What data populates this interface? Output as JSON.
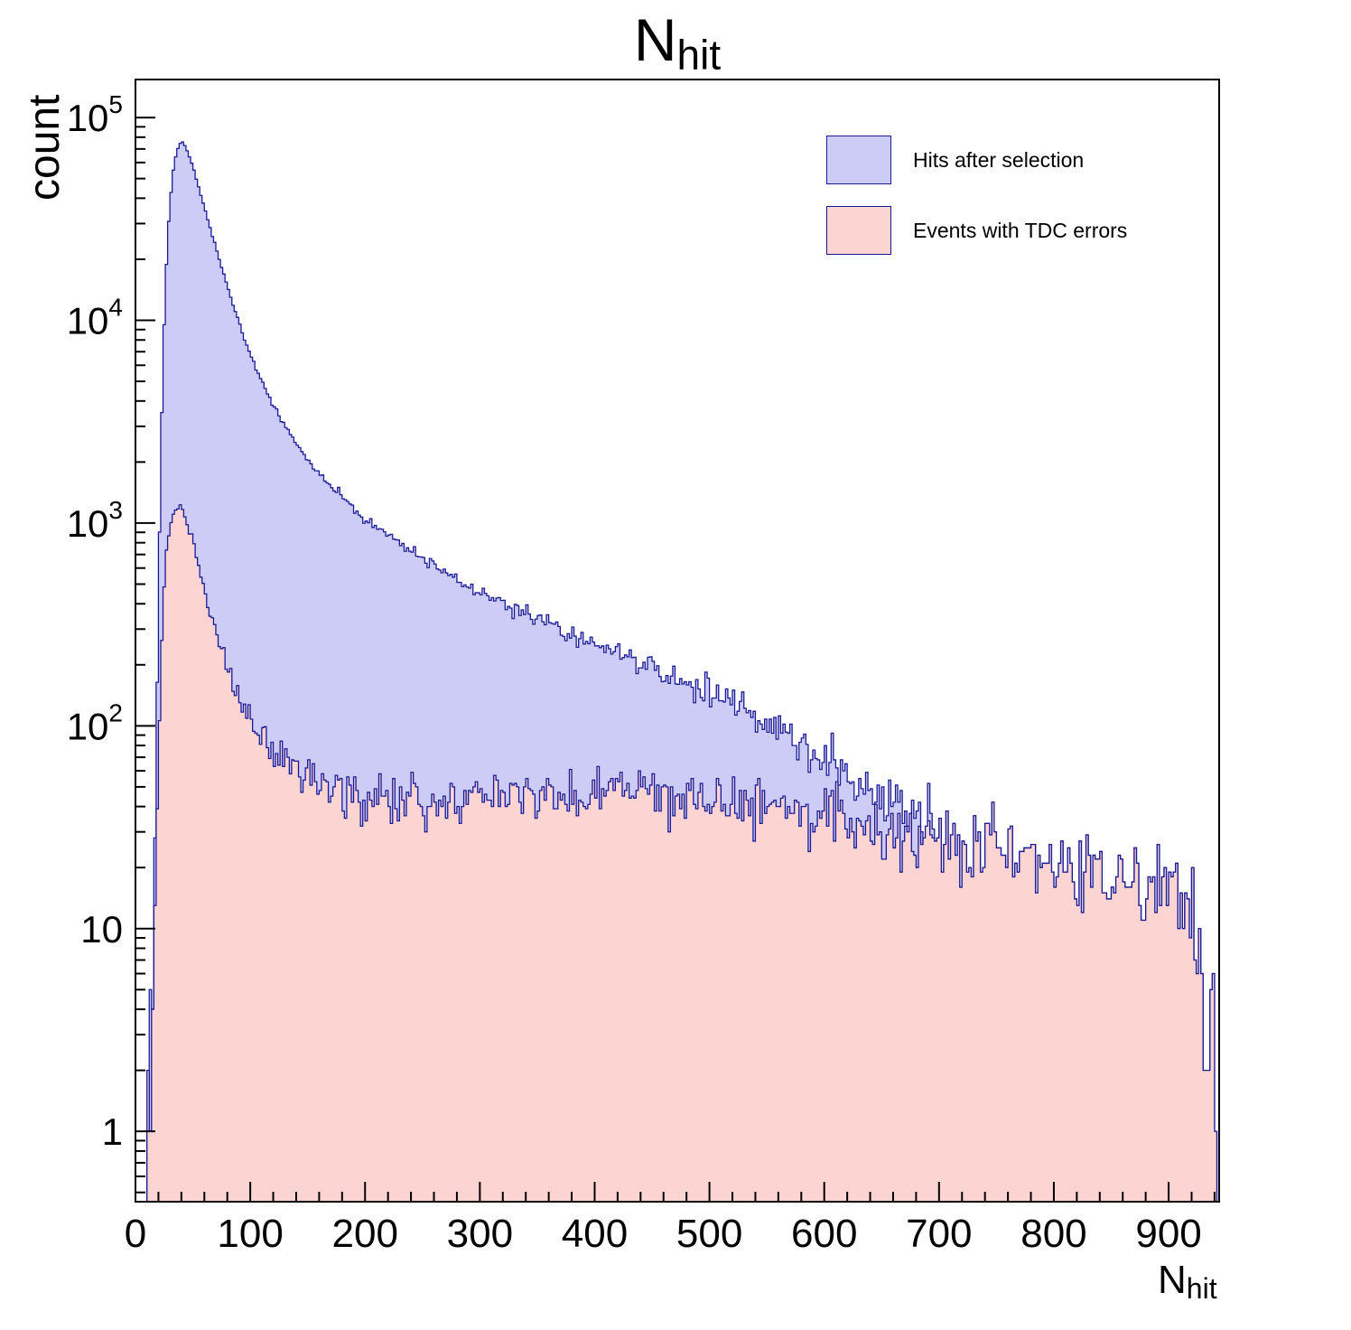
{
  "title": {
    "text": "N",
    "sub": "hit"
  },
  "y_axis_title": "count",
  "x_axis_title": {
    "text": "N",
    "sub": "hit"
  },
  "chart_data": {
    "type": "histogram-step-filled",
    "y_scale": "log",
    "x_range": [
      0,
      944
    ],
    "y_range": [
      0.45,
      154000
    ],
    "bin_width": 2,
    "grid": false,
    "legend_position": "top-right",
    "x_ticks": [
      0,
      100,
      200,
      300,
      400,
      500,
      600,
      700,
      800,
      900
    ],
    "x_minor_step": 20,
    "y_ticks": [
      {
        "v": 1,
        "base": "1",
        "exp": ""
      },
      {
        "v": 10,
        "base": "10",
        "exp": ""
      },
      {
        "v": 100,
        "base": "10",
        "exp": "2"
      },
      {
        "v": 1000,
        "base": "10",
        "exp": "3"
      },
      {
        "v": 10000,
        "base": "10",
        "exp": "4"
      },
      {
        "v": 100000,
        "base": "10",
        "exp": "5"
      }
    ],
    "series": [
      {
        "name": "Hits after selection",
        "fill": "#ccccf6",
        "line": "#1a1a96",
        "seed": 4242,
        "peak": {
          "x": 40,
          "y": 75000
        },
        "anchors": [
          [
            4,
            0.3
          ],
          [
            8,
            0.8
          ],
          [
            12,
            1.2
          ],
          [
            15,
            4
          ],
          [
            17,
            25
          ],
          [
            19,
            150
          ],
          [
            21,
            900
          ],
          [
            23,
            3500
          ],
          [
            25,
            9500
          ],
          [
            27,
            19000
          ],
          [
            29,
            31000
          ],
          [
            31,
            43000
          ],
          [
            33,
            55000
          ],
          [
            35,
            64000
          ],
          [
            37,
            70500
          ],
          [
            39,
            74000
          ],
          [
            41,
            75000
          ],
          [
            43,
            73000
          ],
          [
            45,
            69000
          ],
          [
            48,
            62000
          ],
          [
            51,
            54500
          ],
          [
            54,
            47500
          ],
          [
            57,
            41500
          ],
          [
            60,
            36000
          ],
          [
            64,
            30000
          ],
          [
            68,
            25000
          ],
          [
            72,
            21000
          ],
          [
            76,
            17600
          ],
          [
            80,
            14800
          ],
          [
            85,
            12000
          ],
          [
            90,
            9800
          ],
          [
            95,
            8100
          ],
          [
            100,
            6800
          ],
          [
            105,
            5800
          ],
          [
            110,
            5000
          ],
          [
            115,
            4350
          ],
          [
            120,
            3800
          ],
          [
            125,
            3400
          ],
          [
            130,
            3000
          ],
          [
            135,
            2700
          ],
          [
            140,
            2450
          ],
          [
            145,
            2250
          ],
          [
            150,
            2050
          ],
          [
            160,
            1750
          ],
          [
            170,
            1520
          ],
          [
            180,
            1340
          ],
          [
            190,
            1190
          ],
          [
            200,
            1060
          ],
          [
            210,
            960
          ],
          [
            220,
            875
          ],
          [
            230,
            800
          ],
          [
            240,
            735
          ],
          [
            250,
            675
          ],
          [
            260,
            625
          ],
          [
            270,
            578
          ],
          [
            280,
            535
          ],
          [
            290,
            497
          ],
          [
            300,
            462
          ],
          [
            310,
            430
          ],
          [
            320,
            402
          ],
          [
            330,
            376
          ],
          [
            340,
            353
          ],
          [
            350,
            332
          ],
          [
            360,
            313
          ],
          [
            370,
            296
          ],
          [
            380,
            280
          ],
          [
            390,
            265
          ],
          [
            400,
            251
          ],
          [
            410,
            239
          ],
          [
            420,
            227
          ],
          [
            430,
            216
          ],
          [
            440,
            205
          ],
          [
            450,
            195
          ],
          [
            460,
            185
          ],
          [
            470,
            175
          ],
          [
            480,
            166
          ],
          [
            490,
            157
          ],
          [
            500,
            148
          ],
          [
            510,
            139
          ],
          [
            520,
            130
          ],
          [
            530,
            121
          ],
          [
            540,
            112
          ],
          [
            550,
            104
          ],
          [
            560,
            96
          ],
          [
            570,
            88
          ],
          [
            580,
            81
          ],
          [
            590,
            74
          ],
          [
            600,
            68
          ],
          [
            610,
            62
          ],
          [
            620,
            57
          ],
          [
            630,
            52
          ],
          [
            640,
            48
          ],
          [
            650,
            44
          ],
          [
            660,
            40
          ],
          [
            670,
            37
          ],
          [
            680,
            34
          ],
          [
            690,
            31
          ],
          [
            700,
            29
          ],
          [
            720,
            26
          ],
          [
            740,
            25
          ],
          [
            760,
            24
          ],
          [
            780,
            23
          ],
          [
            800,
            22
          ],
          [
            820,
            21
          ],
          [
            840,
            20
          ],
          [
            860,
            19
          ],
          [
            880,
            17
          ],
          [
            900,
            15
          ],
          [
            910,
            13
          ],
          [
            918,
            11
          ],
          [
            924,
            8
          ],
          [
            930,
            5
          ],
          [
            934,
            3
          ],
          [
            938,
            1.5
          ],
          [
            941,
            0.7
          ],
          [
            944,
            0.3
          ]
        ]
      },
      {
        "name": "Events with TDC errors",
        "fill": "#fcd4d2",
        "line": "#1a1a96",
        "seed": 1337,
        "peak": {
          "x": 38,
          "y": 1220
        },
        "anchors": [
          [
            4,
            0.2
          ],
          [
            8,
            0.5
          ],
          [
            12,
            1
          ],
          [
            14,
            2
          ],
          [
            16,
            5
          ],
          [
            18,
            16
          ],
          [
            20,
            60
          ],
          [
            22,
            180
          ],
          [
            24,
            400
          ],
          [
            27,
            720
          ],
          [
            30,
            960
          ],
          [
            34,
            1150
          ],
          [
            38,
            1220
          ],
          [
            42,
            1150
          ],
          [
            46,
            960
          ],
          [
            50,
            790
          ],
          [
            55,
            610
          ],
          [
            60,
            470
          ],
          [
            65,
            370
          ],
          [
            70,
            295
          ],
          [
            75,
            240
          ],
          [
            80,
            200
          ],
          [
            85,
            168
          ],
          [
            90,
            142
          ],
          [
            95,
            122
          ],
          [
            100,
            106
          ],
          [
            110,
            88
          ],
          [
            120,
            76
          ],
          [
            130,
            67
          ],
          [
            140,
            60
          ],
          [
            150,
            55
          ],
          [
            160,
            51
          ],
          [
            180,
            47
          ],
          [
            200,
            45
          ],
          [
            240,
            43
          ],
          [
            280,
            44
          ],
          [
            320,
            45
          ],
          [
            360,
            45
          ],
          [
            400,
            46
          ],
          [
            440,
            45
          ],
          [
            480,
            43
          ],
          [
            520,
            41
          ],
          [
            560,
            39
          ],
          [
            600,
            35
          ],
          [
            640,
            31
          ],
          [
            680,
            28
          ],
          [
            700,
            27
          ],
          [
            720,
            26
          ],
          [
            740,
            25
          ],
          [
            760,
            24
          ],
          [
            780,
            23
          ],
          [
            800,
            22
          ],
          [
            820,
            21
          ],
          [
            840,
            20
          ],
          [
            860,
            19
          ],
          [
            880,
            17
          ],
          [
            900,
            15
          ],
          [
            910,
            13
          ],
          [
            918,
            11
          ],
          [
            924,
            8
          ],
          [
            930,
            5
          ],
          [
            934,
            3
          ],
          [
            938,
            1.5
          ],
          [
            941,
            0.7
          ],
          [
            944,
            0.3
          ]
        ]
      }
    ]
  }
}
